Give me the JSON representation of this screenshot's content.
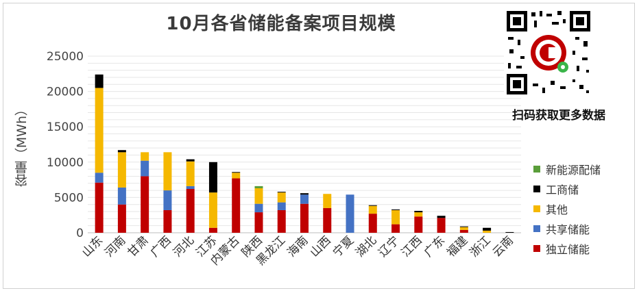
{
  "chart_data": {
    "type": "bar",
    "stacked": true,
    "title": "10月各省储能备案项目规模",
    "ylabel": "容量（MWh）",
    "xlabel": "",
    "ylim": [
      0,
      25000
    ],
    "yticks": [
      0,
      5000,
      10000,
      15000,
      20000,
      25000
    ],
    "ytick_labels": [
      "0",
      "5000",
      "10000",
      "15000",
      "20000",
      "25000"
    ],
    "grid": "horizontal",
    "legend_position": "right",
    "categories": [
      "山东",
      "河南",
      "甘肃",
      "广西",
      "河北",
      "江苏",
      "内蒙古",
      "陕西",
      "黑龙江",
      "海南",
      "山西",
      "宁夏",
      "湖北",
      "辽宁",
      "江西",
      "广东",
      "福建",
      "浙江",
      "云南"
    ],
    "series": [
      {
        "name": "独立储能",
        "color": "#C00000",
        "values": [
          7100,
          4000,
          8000,
          3200,
          6200,
          700,
          7700,
          2900,
          3200,
          4100,
          3500,
          0,
          2700,
          1200,
          2300,
          2100,
          400,
          0,
          0
        ]
      },
      {
        "name": "共享储能",
        "color": "#4472C4",
        "values": [
          1400,
          2400,
          2200,
          2800,
          400,
          0,
          0,
          1200,
          1100,
          1300,
          0,
          5400,
          0,
          0,
          0,
          0,
          0,
          0,
          0
        ]
      },
      {
        "name": "其他",
        "color": "#F5B800",
        "values": [
          12000,
          5000,
          1200,
          5400,
          3500,
          5000,
          800,
          2200,
          1400,
          0,
          2000,
          0,
          1100,
          2000,
          600,
          0,
          400,
          300,
          0
        ]
      },
      {
        "name": "工商储",
        "color": "#000000",
        "values": [
          1900,
          300,
          0,
          0,
          300,
          4300,
          100,
          0,
          100,
          200,
          0,
          0,
          100,
          100,
          200,
          300,
          100,
          400,
          100
        ]
      },
      {
        "name": "新能源配储",
        "color": "#5A9E3A",
        "values": [
          0,
          0,
          0,
          0,
          0,
          0,
          0,
          300,
          0,
          0,
          0,
          0,
          0,
          0,
          0,
          0,
          0,
          0,
          0
        ]
      }
    ]
  },
  "legend_order": [
    "新能源配储",
    "工商储",
    "其他",
    "共享储能",
    "独立储能"
  ],
  "qr": {
    "caption": "扫码获取更多数据",
    "icon": "qr-code-icon"
  }
}
